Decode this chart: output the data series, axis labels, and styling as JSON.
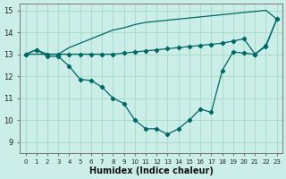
{
  "title": "",
  "xlabel": "Humidex (Indice chaleur)",
  "background_color": "#cceee8",
  "grid_color": "#aaddcc",
  "line_color": "#006666",
  "x_values": [
    0,
    1,
    2,
    3,
    4,
    5,
    6,
    7,
    8,
    9,
    10,
    11,
    12,
    13,
    14,
    15,
    16,
    17,
    18,
    19,
    20,
    21,
    22,
    23
  ],
  "series1": [
    13.0,
    13.2,
    12.9,
    12.9,
    12.45,
    11.85,
    11.8,
    11.5,
    11.0,
    10.75,
    10.0,
    9.6,
    9.6,
    9.35,
    9.6,
    10.0,
    10.5,
    10.35,
    12.25,
    13.1,
    13.05,
    13.0,
    13.4,
    14.6
  ],
  "series2": [
    13.0,
    13.2,
    13.0,
    13.0,
    13.0,
    13.0,
    13.0,
    13.0,
    13.0,
    13.05,
    13.1,
    13.15,
    13.2,
    13.25,
    13.3,
    13.35,
    13.4,
    13.45,
    13.5,
    13.6,
    13.7,
    13.0,
    13.35,
    14.6
  ],
  "series3": [
    13.0,
    13.0,
    13.0,
    13.0,
    13.3,
    13.5,
    13.7,
    13.9,
    14.1,
    14.2,
    14.35,
    14.45,
    14.5,
    14.55,
    14.6,
    14.65,
    14.7,
    14.75,
    14.8,
    14.85,
    14.9,
    14.95,
    15.0,
    14.6
  ],
  "ylim": [
    8.5,
    15.3
  ],
  "xlim": [
    -0.5,
    23.5
  ],
  "yticks": [
    9,
    10,
    11,
    12,
    13,
    14,
    15
  ],
  "xticks": [
    0,
    1,
    2,
    3,
    4,
    5,
    6,
    7,
    8,
    9,
    10,
    11,
    12,
    13,
    14,
    15,
    16,
    17,
    18,
    19,
    20,
    21,
    22,
    23
  ]
}
